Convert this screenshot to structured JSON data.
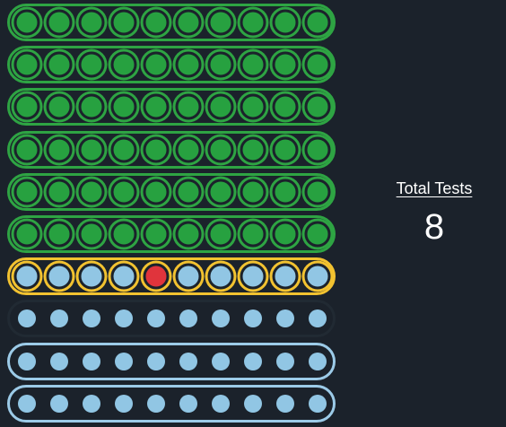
{
  "summary": {
    "label": "Total Tests",
    "value": "8"
  },
  "colors": {
    "background": "#1b222b",
    "passed": "#2ea443",
    "active": "#f2c230",
    "pending": "#91c6e4",
    "failed": "#e0343c"
  },
  "rows": [
    {
      "state": "passed",
      "dots": [
        "passed",
        "passed",
        "passed",
        "passed",
        "passed",
        "passed",
        "passed",
        "passed",
        "passed",
        "passed"
      ]
    },
    {
      "state": "passed",
      "dots": [
        "passed",
        "passed",
        "passed",
        "passed",
        "passed",
        "passed",
        "passed",
        "passed",
        "passed",
        "passed"
      ]
    },
    {
      "state": "passed",
      "dots": [
        "passed",
        "passed",
        "passed",
        "passed",
        "passed",
        "passed",
        "passed",
        "passed",
        "passed",
        "passed"
      ]
    },
    {
      "state": "passed",
      "dots": [
        "passed",
        "passed",
        "passed",
        "passed",
        "passed",
        "passed",
        "passed",
        "passed",
        "passed",
        "passed"
      ]
    },
    {
      "state": "passed",
      "dots": [
        "passed",
        "passed",
        "passed",
        "passed",
        "passed",
        "passed",
        "passed",
        "passed",
        "passed",
        "passed"
      ]
    },
    {
      "state": "passed",
      "dots": [
        "passed",
        "passed",
        "passed",
        "passed",
        "passed",
        "passed",
        "passed",
        "passed",
        "passed",
        "passed"
      ]
    },
    {
      "state": "active",
      "dots": [
        "pending",
        "pending",
        "pending",
        "pending",
        "failed",
        "pending",
        "pending",
        "pending",
        "pending",
        "pending"
      ]
    },
    {
      "state": "pending-dim",
      "dots": [
        "pending",
        "pending",
        "pending",
        "pending",
        "pending",
        "pending",
        "pending",
        "pending",
        "pending",
        "pending"
      ]
    },
    {
      "state": "pending",
      "dots": [
        "pending",
        "pending",
        "pending",
        "pending",
        "pending",
        "pending",
        "pending",
        "pending",
        "pending",
        "pending"
      ]
    },
    {
      "state": "pending",
      "dots": [
        "pending",
        "pending",
        "pending",
        "pending",
        "pending",
        "pending",
        "pending",
        "pending",
        "pending",
        "pending"
      ]
    }
  ]
}
